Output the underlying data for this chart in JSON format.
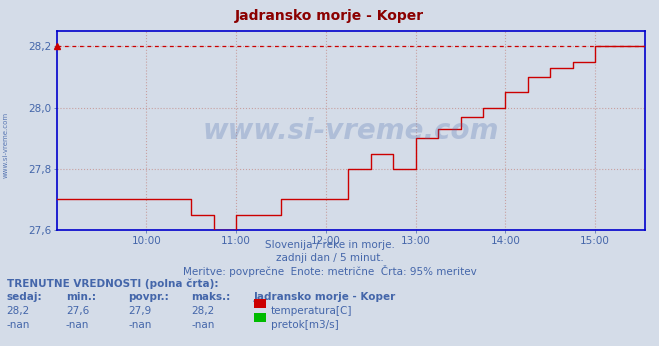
{
  "title": "Jadransko morje - Koper",
  "title_color": "#8b0000",
  "bg_color": "#d4dce8",
  "plot_bg_color": "#d4dce8",
  "grid_color_dotted": "#c8a0a0",
  "grid_color_h": "#c08080",
  "axis_color": "#0000cc",
  "text_color": "#4466aa",
  "line_color": "#cc0000",
  "dashed_line_color": "#cc0000",
  "ylim": [
    27.6,
    28.25
  ],
  "yticks": [
    27.6,
    27.8,
    28.0,
    28.2
  ],
  "yticklabels": [
    "27,6",
    "27,8",
    "28,0",
    "28,2"
  ],
  "xlim": [
    9.0,
    15.55
  ],
  "xticks": [
    10,
    11,
    12,
    13,
    14,
    15
  ],
  "xticklabels": [
    "10:00",
    "11:00",
    "12:00",
    "13:00",
    "14:00",
    "15:00"
  ],
  "subtitle1": "Slovenija / reke in morje.",
  "subtitle2": "zadnji dan / 5 minut.",
  "subtitle3": "Meritve: povprečne  Enote: metrične  Črta: 95% meritev",
  "legend_title": "TRENUTNE VREDNOSTI (polna črta):",
  "col_headers": [
    "sedaj:",
    "min.:",
    "povpr.:",
    "maks.:",
    "Jadransko morje - Koper"
  ],
  "row1_vals": [
    "28,2",
    "27,6",
    "27,9",
    "28,2"
  ],
  "row2_vals": [
    "-nan",
    "-nan",
    "-nan",
    "-nan"
  ],
  "row1_label": "temperatura[C]",
  "row2_label": "pretok[m3/s]",
  "temp_color": "#cc0000",
  "pretok_color": "#00bb00",
  "watermark_text": "www.si-vreme.com",
  "watermark_color": "#4466aa",
  "left_label": "www.si-vreme.com",
  "max_line_y": 28.2,
  "x_steps": [
    9.0,
    10.5,
    10.75,
    11.0,
    11.5,
    12.25,
    12.5,
    12.75,
    13.0,
    13.25,
    13.5,
    13.75,
    14.0,
    14.25,
    14.5,
    14.75,
    15.0,
    15.55
  ],
  "y_steps": [
    27.7,
    27.65,
    27.6,
    27.65,
    27.7,
    27.8,
    27.85,
    27.8,
    27.9,
    27.93,
    27.97,
    28.0,
    28.05,
    28.1,
    28.13,
    28.15,
    28.2,
    28.2
  ]
}
